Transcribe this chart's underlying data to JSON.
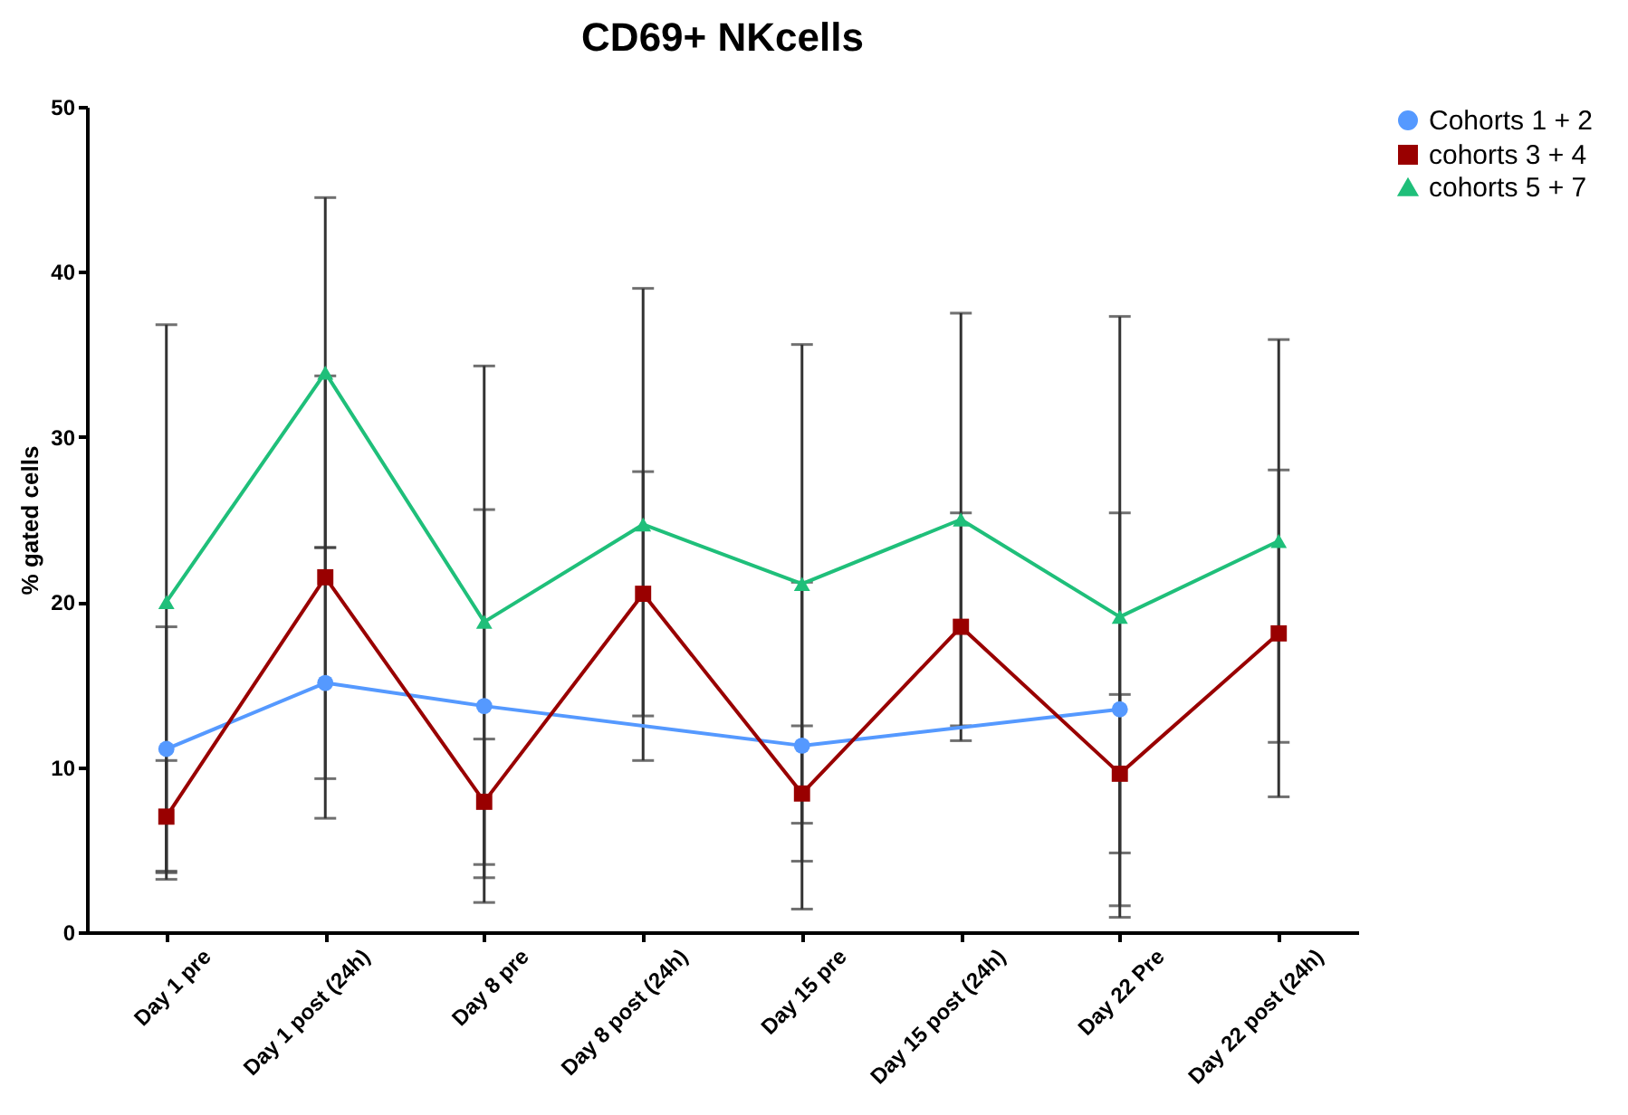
{
  "chart_data": {
    "type": "line",
    "title": "CD69+ NKcells",
    "ylabel": "% gated cells",
    "categories": [
      "Day 1 pre",
      "Day 1 post (24h)",
      "Day 8 pre",
      "Day 8 post (24h)",
      "Day 15 pre",
      "Day 15 post (24h)",
      "Day 22 Pre",
      "Day 22 post (24h)"
    ],
    "ylim": [
      0,
      50
    ],
    "yticks": [
      0,
      10,
      20,
      30,
      40,
      50
    ],
    "grid": false,
    "legend": "right",
    "series": [
      {
        "name": "Cohorts 1 + 2",
        "color": "#5599ff",
        "marker": "circle",
        "values": [
          11.1,
          15.1,
          13.7,
          null,
          11.3,
          null,
          13.5,
          null
        ],
        "errors": [
          7.4,
          8.2,
          11.9,
          null,
          9.9,
          null,
          11.9,
          null
        ]
      },
      {
        "name": "cohorts 3 + 4",
        "color": "#990000",
        "marker": "square",
        "values": [
          7.0,
          21.5,
          7.9,
          20.5,
          8.4,
          18.5,
          9.6,
          18.1
        ],
        "errors": [
          3.4,
          12.2,
          3.8,
          7.4,
          4.1,
          6.9,
          4.8,
          9.9
        ]
      },
      {
        "name": "cohorts 5 + 7",
        "color": "#1fbf7a",
        "marker": "triangle",
        "values": [
          20.0,
          33.9,
          18.8,
          24.7,
          21.1,
          25.0,
          19.1,
          23.7
        ],
        "errors": [
          16.8,
          10.6,
          15.5,
          14.3,
          14.5,
          12.5,
          18.2,
          12.2
        ]
      }
    ]
  }
}
